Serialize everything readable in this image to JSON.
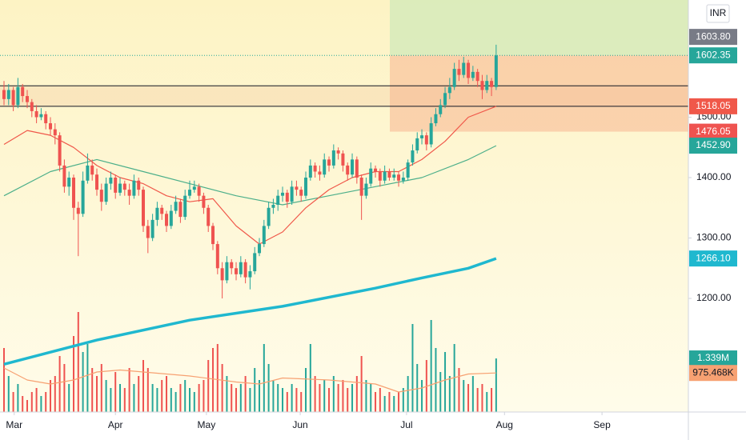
{
  "chart_data": {
    "type": "candlestick",
    "currency": "INR",
    "xlim": [
      -0.86,
      147.4
    ],
    "xticks": [
      {
        "value": 2.2,
        "label": "Mar"
      },
      {
        "value": 24,
        "label": "Apr"
      },
      {
        "value": 43.6,
        "label": "May"
      },
      {
        "value": 63.8,
        "label": "Jun"
      },
      {
        "value": 86.7,
        "label": "Jul"
      },
      {
        "value": 107.8,
        "label": "Aug"
      },
      {
        "value": 128.8,
        "label": "Sep"
      }
    ],
    "ylim": [
      1012,
      1694
    ],
    "yticks": [
      {
        "value": 1200,
        "label": "1200.00"
      },
      {
        "value": 1300,
        "label": "1300.00"
      },
      {
        "value": 1400,
        "label": "1400.00"
      },
      {
        "value": 1500,
        "label": "1500.00"
      }
    ],
    "y2lim": [
      0,
      10.3
    ],
    "up_color": "#26a69a",
    "down_color": "#ef5350",
    "candles": [
      [
        1545,
        1560,
        1520,
        1530
      ],
      [
        1530,
        1555,
        1520,
        1545
      ],
      [
        1545,
        1550,
        1510,
        1520
      ],
      [
        1520,
        1565,
        1515,
        1550
      ],
      [
        1550,
        1555,
        1525,
        1535
      ],
      [
        1535,
        1545,
        1515,
        1525
      ],
      [
        1525,
        1530,
        1500,
        1510
      ],
      [
        1510,
        1520,
        1490,
        1500
      ],
      [
        1500,
        1515,
        1495,
        1505
      ],
      [
        1505,
        1510,
        1480,
        1490
      ],
      [
        1490,
        1500,
        1470,
        1480
      ],
      [
        1480,
        1490,
        1455,
        1470
      ],
      [
        1470,
        1475,
        1410,
        1420
      ],
      [
        1420,
        1430,
        1375,
        1385
      ],
      [
        1385,
        1410,
        1370,
        1400
      ],
      [
        1400,
        1405,
        1330,
        1350
      ],
      [
        1350,
        1360,
        1270,
        1340
      ],
      [
        1340,
        1410,
        1335,
        1395
      ],
      [
        1395,
        1440,
        1390,
        1420
      ],
      [
        1420,
        1430,
        1395,
        1405
      ],
      [
        1405,
        1415,
        1370,
        1380
      ],
      [
        1380,
        1390,
        1345,
        1360
      ],
      [
        1360,
        1400,
        1355,
        1390
      ],
      [
        1390,
        1410,
        1380,
        1400
      ],
      [
        1400,
        1405,
        1365,
        1375
      ],
      [
        1375,
        1400,
        1370,
        1390
      ],
      [
        1390,
        1395,
        1370,
        1380
      ],
      [
        1380,
        1390,
        1355,
        1370
      ],
      [
        1370,
        1405,
        1365,
        1395
      ],
      [
        1395,
        1400,
        1370,
        1380
      ],
      [
        1380,
        1385,
        1310,
        1320
      ],
      [
        1320,
        1330,
        1275,
        1300
      ],
      [
        1300,
        1340,
        1295,
        1330
      ],
      [
        1330,
        1360,
        1320,
        1350
      ],
      [
        1350,
        1355,
        1330,
        1340
      ],
      [
        1340,
        1345,
        1310,
        1320
      ],
      [
        1320,
        1355,
        1315,
        1345
      ],
      [
        1345,
        1370,
        1340,
        1360
      ],
      [
        1360,
        1365,
        1325,
        1335
      ],
      [
        1335,
        1380,
        1330,
        1370
      ],
      [
        1370,
        1395,
        1365,
        1380
      ],
      [
        1380,
        1395,
        1375,
        1385
      ],
      [
        1385,
        1390,
        1360,
        1370
      ],
      [
        1370,
        1375,
        1340,
        1350
      ],
      [
        1350,
        1355,
        1310,
        1320
      ],
      [
        1320,
        1325,
        1280,
        1290
      ],
      [
        1290,
        1295,
        1240,
        1250
      ],
      [
        1250,
        1260,
        1200,
        1230
      ],
      [
        1230,
        1270,
        1225,
        1260
      ],
      [
        1260,
        1265,
        1240,
        1250
      ],
      [
        1250,
        1260,
        1230,
        1240
      ],
      [
        1240,
        1270,
        1235,
        1260
      ],
      [
        1260,
        1265,
        1225,
        1235
      ],
      [
        1235,
        1255,
        1215,
        1245
      ],
      [
        1245,
        1285,
        1240,
        1275
      ],
      [
        1275,
        1300,
        1270,
        1290
      ],
      [
        1290,
        1330,
        1285,
        1320
      ],
      [
        1320,
        1360,
        1315,
        1350
      ],
      [
        1350,
        1365,
        1340,
        1355
      ],
      [
        1355,
        1380,
        1345,
        1370
      ],
      [
        1370,
        1385,
        1360,
        1375
      ],
      [
        1375,
        1380,
        1350,
        1360
      ],
      [
        1360,
        1395,
        1355,
        1385
      ],
      [
        1385,
        1395,
        1370,
        1380
      ],
      [
        1380,
        1385,
        1360,
        1370
      ],
      [
        1370,
        1410,
        1365,
        1400
      ],
      [
        1400,
        1430,
        1395,
        1420
      ],
      [
        1420,
        1425,
        1400,
        1410
      ],
      [
        1410,
        1420,
        1395,
        1405
      ],
      [
        1405,
        1440,
        1400,
        1430
      ],
      [
        1430,
        1435,
        1410,
        1420
      ],
      [
        1420,
        1455,
        1415,
        1445
      ],
      [
        1445,
        1450,
        1430,
        1440
      ],
      [
        1440,
        1445,
        1410,
        1420
      ],
      [
        1420,
        1425,
        1395,
        1405
      ],
      [
        1405,
        1440,
        1400,
        1430
      ],
      [
        1430,
        1435,
        1390,
        1400
      ],
      [
        1400,
        1405,
        1330,
        1370
      ],
      [
        1370,
        1400,
        1365,
        1390
      ],
      [
        1390,
        1425,
        1385,
        1415
      ],
      [
        1415,
        1420,
        1400,
        1410
      ],
      [
        1410,
        1415,
        1385,
        1395
      ],
      [
        1395,
        1420,
        1390,
        1410
      ],
      [
        1410,
        1415,
        1395,
        1400
      ],
      [
        1400,
        1415,
        1395,
        1405
      ],
      [
        1405,
        1410,
        1385,
        1395
      ],
      [
        1395,
        1410,
        1390,
        1400
      ],
      [
        1400,
        1430,
        1395,
        1425
      ],
      [
        1425,
        1455,
        1420,
        1445
      ],
      [
        1445,
        1475,
        1440,
        1465
      ],
      [
        1465,
        1480,
        1455,
        1470
      ],
      [
        1470,
        1475,
        1445,
        1455
      ],
      [
        1455,
        1500,
        1450,
        1490
      ],
      [
        1490,
        1515,
        1485,
        1505
      ],
      [
        1505,
        1530,
        1500,
        1520
      ],
      [
        1520,
        1550,
        1515,
        1540
      ],
      [
        1540,
        1565,
        1530,
        1550
      ],
      [
        1550,
        1590,
        1545,
        1580
      ],
      [
        1580,
        1595,
        1560,
        1570
      ],
      [
        1570,
        1600,
        1565,
        1590
      ],
      [
        1590,
        1595,
        1555,
        1565
      ],
      [
        1565,
        1585,
        1560,
        1575
      ],
      [
        1575,
        1580,
        1550,
        1560
      ],
      [
        1560,
        1570,
        1530,
        1545
      ],
      [
        1545,
        1570,
        1540,
        1560
      ],
      [
        1560,
        1565,
        1535,
        1550
      ],
      [
        1550,
        1620,
        1545,
        1602.35
      ]
    ],
    "volume": {
      "axis": "y2",
      "values": [
        1.6,
        0.9,
        0.5,
        0.7,
        0.4,
        0.3,
        0.5,
        0.6,
        0.4,
        0.5,
        0.8,
        0.9,
        1.4,
        1.2,
        0.7,
        1.9,
        2.5,
        1.5,
        1.7,
        1.1,
        0.9,
        1.2,
        0.8,
        0.6,
        1.0,
        0.7,
        0.6,
        1.1,
        0.7,
        0.9,
        1.3,
        1.1,
        0.7,
        0.6,
        0.8,
        0.9,
        0.6,
        0.5,
        0.7,
        0.8,
        0.6,
        0.5,
        0.7,
        0.8,
        1.3,
        1.6,
        1.7,
        1.2,
        0.9,
        0.7,
        0.6,
        0.7,
        0.9,
        0.6,
        1.1,
        0.8,
        1.7,
        1.2,
        0.8,
        0.7,
        0.6,
        0.5,
        0.7,
        0.6,
        0.5,
        1.1,
        1.7,
        0.9,
        0.7,
        0.8,
        0.6,
        0.9,
        0.7,
        0.8,
        0.6,
        0.7,
        0.9,
        1.4,
        0.8,
        0.7,
        0.5,
        0.6,
        0.4,
        0.5,
        0.4,
        0.5,
        0.6,
        0.9,
        2.2,
        1.2,
        0.8,
        1.3,
        2.3,
        1.6,
        1.0,
        1.5,
        0.9,
        1.7,
        1.1,
        0.8,
        0.7,
        0.9,
        0.6,
        0.7,
        0.5,
        0.6,
        1.339
      ]
    },
    "lines": [
      {
        "color": "#f7a172",
        "width": 1.2,
        "axis": "y2",
        "x": [
          0,
          5,
          10,
          15,
          20,
          25,
          30,
          40,
          50,
          55,
          60,
          70,
          80,
          85,
          90,
          95,
          100,
          106
        ],
        "values": [
          1.1,
          0.8,
          0.7,
          0.8,
          1.0,
          1.05,
          1.0,
          0.9,
          0.75,
          0.7,
          0.85,
          0.8,
          0.7,
          0.5,
          0.6,
          0.8,
          0.95,
          0.975468
        ]
      },
      {
        "color": "#4caf8a",
        "width": 1.2,
        "x": [
          0,
          10,
          20,
          30,
          40,
          50,
          60,
          70,
          80,
          90,
          100,
          106
        ],
        "values": [
          1370,
          1410,
          1430,
          1410,
          1390,
          1370,
          1355,
          1370,
          1385,
          1400,
          1430,
          1452.9
        ]
      },
      {
        "color": "#f0584a",
        "width": 1.2,
        "x": [
          0,
          5,
          10,
          15,
          20,
          25,
          30,
          35,
          40,
          45,
          50,
          55,
          60,
          65,
          70,
          75,
          80,
          85,
          90,
          95,
          100,
          106
        ],
        "values": [
          1455,
          1478,
          1470,
          1450,
          1420,
          1400,
          1390,
          1370,
          1360,
          1365,
          1320,
          1290,
          1310,
          1350,
          1380,
          1400,
          1410,
          1410,
          1430,
          1460,
          1500,
          1518.05
        ]
      },
      {
        "color": "#1fb8cf",
        "width": 3.5,
        "x": [
          0,
          20,
          40,
          60,
          80,
          90,
          100,
          106
        ],
        "values": [
          1091,
          1131,
          1164,
          1187,
          1217,
          1234,
          1250,
          1266.1
        ]
      }
    ],
    "levels": [
      1552,
      1518.05
    ],
    "position": {
      "start": 83.1,
      "entry": 1602.35,
      "stop": 1476.05
    },
    "price_labels": [
      {
        "value": 1602.35,
        "label": "1602.35",
        "color": "#26a69a"
      },
      {
        "value": 1603.8,
        "label": "1603.80",
        "color": "#787b86"
      },
      {
        "value": 1518.05,
        "label": "1518.05",
        "color": "#f0584a"
      },
      {
        "value": 1476.05,
        "label": "1476.05",
        "color": "#ef5350"
      },
      {
        "value": 1452.9,
        "label": "1452.90",
        "color": "#26a69a"
      },
      {
        "value": 1266.1,
        "label": "1266.10",
        "color": "#1fb8cf"
      }
    ],
    "volume_labels": [
      {
        "value": 1.339,
        "label": "1.339M",
        "color": "#26a69a"
      },
      {
        "value": 0.975468,
        "label": "975.468K",
        "color": "#f7a172"
      }
    ]
  }
}
